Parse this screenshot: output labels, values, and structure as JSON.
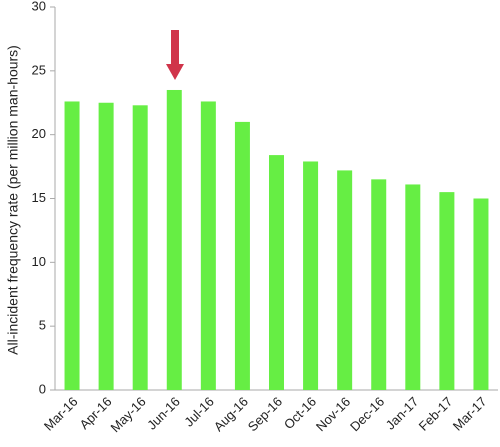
{
  "chart_data": {
    "type": "bar",
    "y_label": "All-incident frequency rate (per million man-hours)",
    "categories": [
      "Mar-16",
      "Apr-16",
      "May-16",
      "Jun-16",
      "Jul-16",
      "Aug-16",
      "Sep-16",
      "Oct-16",
      "Nov-16",
      "Dec-16",
      "Jan-17",
      "Feb-17",
      "Mar-17"
    ],
    "values": [
      22.6,
      22.5,
      22.3,
      23.5,
      22.6,
      21.0,
      18.4,
      17.9,
      17.2,
      16.5,
      16.1,
      15.5,
      15.0
    ],
    "color": "#66ee44",
    "ylim": [
      0,
      30
    ],
    "yticks": [
      0,
      5,
      10,
      15,
      20,
      25,
      30
    ],
    "grid": false
  }
}
